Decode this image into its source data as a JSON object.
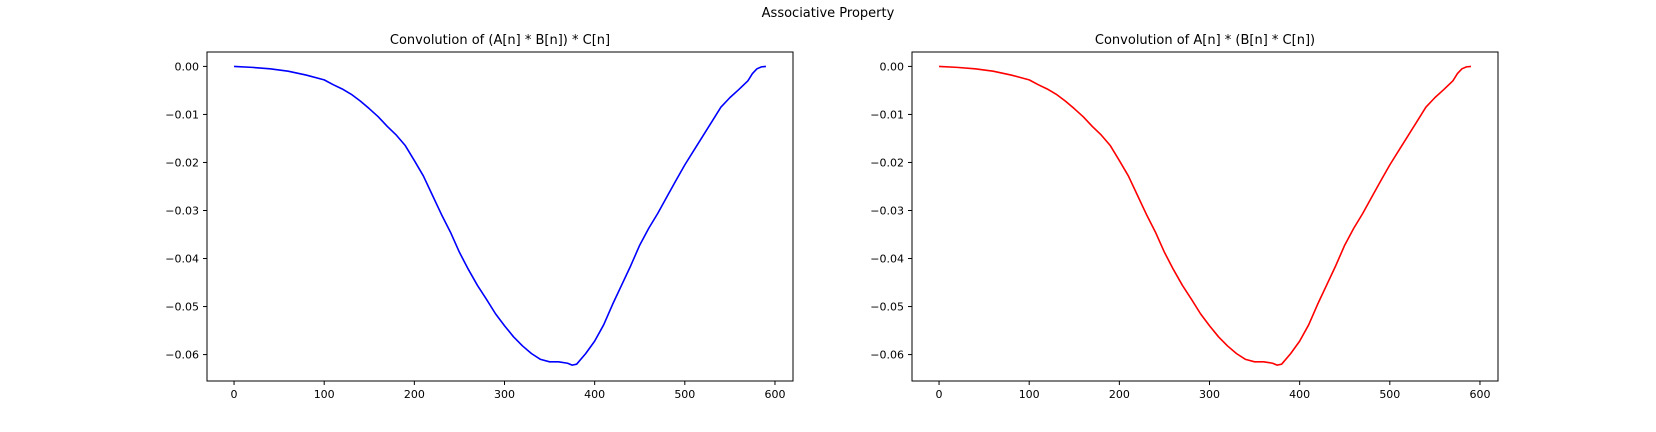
{
  "figure": {
    "suptitle": "Associative Property"
  },
  "chart_data": [
    {
      "type": "line",
      "title": "Convolution of (A[n] * B[n]) * C[n]",
      "xlabel": "",
      "ylabel": "",
      "xlim": [
        -30,
        620
      ],
      "ylim": [
        -0.0655,
        0.003
      ],
      "xticks": [
        0,
        100,
        200,
        300,
        400,
        500,
        600
      ],
      "xtick_labels": [
        "0",
        "100",
        "200",
        "300",
        "400",
        "500",
        "600"
      ],
      "yticks": [
        0.0,
        -0.01,
        -0.02,
        -0.03,
        -0.04,
        -0.05,
        -0.06
      ],
      "ytick_labels": [
        "0.00",
        "−0.01",
        "−0.02",
        "−0.03",
        "−0.04",
        "−0.05",
        "−0.06"
      ],
      "grid": false,
      "series": [
        {
          "color": "#0000ff",
          "x": [
            0,
            20,
            40,
            60,
            80,
            100,
            110,
            120,
            130,
            140,
            150,
            160,
            170,
            180,
            190,
            200,
            210,
            220,
            230,
            240,
            250,
            260,
            270,
            280,
            290,
            300,
            310,
            320,
            330,
            340,
            350,
            360,
            370,
            375,
            380,
            390,
            400,
            410,
            420,
            430,
            440,
            450,
            460,
            470,
            480,
            490,
            500,
            510,
            520,
            530,
            540,
            550,
            560,
            570,
            575,
            580,
            585,
            590
          ],
          "y": [
            0.0,
            -0.0002,
            -0.0005,
            -0.001,
            -0.0018,
            -0.0028,
            -0.0038,
            -0.0047,
            -0.0058,
            -0.0072,
            -0.0088,
            -0.0105,
            -0.0125,
            -0.0143,
            -0.0165,
            -0.0196,
            -0.0228,
            -0.0268,
            -0.0308,
            -0.0345,
            -0.0387,
            -0.0423,
            -0.0456,
            -0.0485,
            -0.0515,
            -0.054,
            -0.0563,
            -0.0582,
            -0.0598,
            -0.061,
            -0.0615,
            -0.0615,
            -0.0618,
            -0.0622,
            -0.062,
            -0.0598,
            -0.0572,
            -0.0538,
            -0.0495,
            -0.0455,
            -0.0415,
            -0.0372,
            -0.0337,
            -0.0306,
            -0.0272,
            -0.0238,
            -0.0205,
            -0.0175,
            -0.0145,
            -0.0115,
            -0.0085,
            -0.0065,
            -0.0048,
            -0.003,
            -0.0015,
            -0.0005,
            -0.0001,
            0.0
          ]
        }
      ]
    },
    {
      "type": "line",
      "title": "Convolution of A[n] * (B[n] * C[n])",
      "xlabel": "",
      "ylabel": "",
      "xlim": [
        -30,
        620
      ],
      "ylim": [
        -0.0655,
        0.003
      ],
      "xticks": [
        0,
        100,
        200,
        300,
        400,
        500,
        600
      ],
      "xtick_labels": [
        "0",
        "100",
        "200",
        "300",
        "400",
        "500",
        "600"
      ],
      "yticks": [
        0.0,
        -0.01,
        -0.02,
        -0.03,
        -0.04,
        -0.05,
        -0.06
      ],
      "ytick_labels": [
        "0.00",
        "−0.01",
        "−0.02",
        "−0.03",
        "−0.04",
        "−0.05",
        "−0.06"
      ],
      "grid": false,
      "series": [
        {
          "color": "#ff0000",
          "x": [
            0,
            20,
            40,
            60,
            80,
            100,
            110,
            120,
            130,
            140,
            150,
            160,
            170,
            180,
            190,
            200,
            210,
            220,
            230,
            240,
            250,
            260,
            270,
            280,
            290,
            300,
            310,
            320,
            330,
            340,
            350,
            360,
            370,
            375,
            380,
            390,
            400,
            410,
            420,
            430,
            440,
            450,
            460,
            470,
            480,
            490,
            500,
            510,
            520,
            530,
            540,
            550,
            560,
            570,
            575,
            580,
            585,
            590
          ],
          "y": [
            0.0,
            -0.0002,
            -0.0005,
            -0.001,
            -0.0018,
            -0.0028,
            -0.0038,
            -0.0047,
            -0.0058,
            -0.0072,
            -0.0088,
            -0.0105,
            -0.0125,
            -0.0143,
            -0.0165,
            -0.0196,
            -0.0228,
            -0.0268,
            -0.0308,
            -0.0345,
            -0.0387,
            -0.0423,
            -0.0456,
            -0.0485,
            -0.0515,
            -0.054,
            -0.0563,
            -0.0582,
            -0.0598,
            -0.061,
            -0.0615,
            -0.0615,
            -0.0618,
            -0.0622,
            -0.062,
            -0.0598,
            -0.0572,
            -0.0538,
            -0.0495,
            -0.0455,
            -0.0415,
            -0.0372,
            -0.0337,
            -0.0306,
            -0.0272,
            -0.0238,
            -0.0205,
            -0.0175,
            -0.0145,
            -0.0115,
            -0.0085,
            -0.0065,
            -0.0048,
            -0.003,
            -0.0015,
            -0.0005,
            -0.0001,
            0.0
          ]
        }
      ]
    }
  ]
}
